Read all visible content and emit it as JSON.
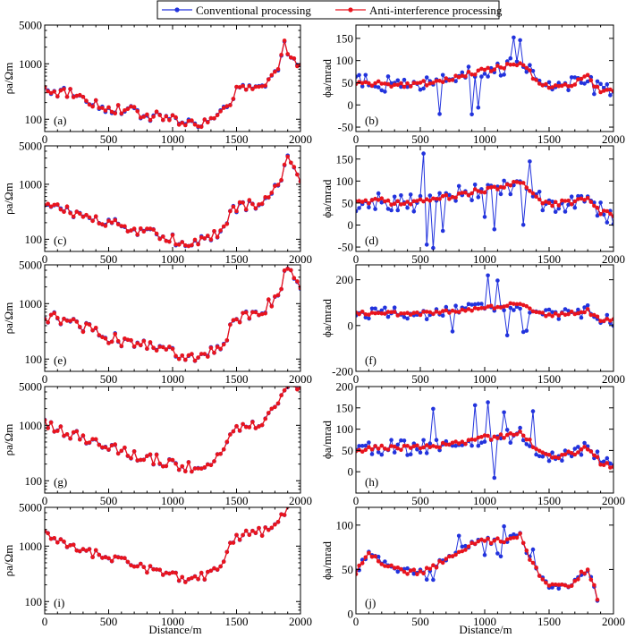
{
  "legend": {
    "conventional_label": "Conventional processing",
    "anti_label": "Anti-interference processing",
    "conventional_color": "#2233dd",
    "anti_color": "#e8141e"
  },
  "axis_labels": {
    "rho_y": "ρa/Ωm",
    "phi_y": "ϕa/mrad",
    "x": "Distance/m"
  },
  "chart_data": {
    "type": "line",
    "xlim": [
      0,
      2000
    ],
    "xticks": [
      0,
      500,
      1000,
      1500,
      2000
    ],
    "xlabel": "Distance/m",
    "series_names": [
      "Conventional processing",
      "Anti-interference processing"
    ],
    "panels": [
      {
        "label": "(a)",
        "kind": "rho",
        "scale": "log",
        "ylim": [
          60,
          5000
        ],
        "yticks": [
          100,
          1000,
          5000
        ],
        "ylabel": "ρa/Ωm",
        "profile": [
          [
            0,
            350
          ],
          [
            100,
            310
          ],
          [
            200,
            300
          ],
          [
            300,
            240
          ],
          [
            400,
            190
          ],
          [
            500,
            160
          ],
          [
            600,
            150
          ],
          [
            700,
            135
          ],
          [
            800,
            120
          ],
          [
            900,
            110
          ],
          [
            1000,
            98
          ],
          [
            1100,
            90
          ],
          [
            1200,
            82
          ],
          [
            1300,
            95
          ],
          [
            1400,
            130
          ],
          [
            1450,
            220
          ],
          [
            1500,
            320
          ],
          [
            1600,
            350
          ],
          [
            1700,
            380
          ],
          [
            1800,
            600
          ],
          [
            1850,
            1200
          ],
          [
            1880,
            2600
          ],
          [
            1900,
            1700
          ],
          [
            1950,
            1500
          ],
          [
            1980,
            900
          ],
          [
            2000,
            800
          ]
        ],
        "noise_conv": 0.2,
        "noise_anti": 0.15
      },
      {
        "label": "(b)",
        "kind": "phi",
        "scale": "linear",
        "ylim": [
          -60,
          180
        ],
        "yticks": [
          -50,
          0,
          50,
          100,
          150
        ],
        "ylabel": "ϕa/mrad",
        "profile": [
          [
            0,
            52
          ],
          [
            200,
            47
          ],
          [
            400,
            44
          ],
          [
            600,
            52
          ],
          [
            800,
            65
          ],
          [
            1000,
            78
          ],
          [
            1150,
            85
          ],
          [
            1250,
            92
          ],
          [
            1300,
            90
          ],
          [
            1400,
            55
          ],
          [
            1500,
            40
          ],
          [
            1600,
            44
          ],
          [
            1700,
            50
          ],
          [
            1800,
            65
          ],
          [
            1850,
            42
          ],
          [
            1900,
            32
          ],
          [
            2000,
            30
          ]
        ],
        "noise_conv": 30,
        "noise_anti": 6
      },
      {
        "label": "(c)",
        "kind": "rho",
        "scale": "log",
        "ylim": [
          60,
          5000
        ],
        "yticks": [
          100,
          1000,
          5000
        ],
        "ylabel": "ρa/Ωm",
        "profile": [
          [
            0,
            420
          ],
          [
            100,
            370
          ],
          [
            200,
            330
          ],
          [
            300,
            270
          ],
          [
            400,
            220
          ],
          [
            500,
            190
          ],
          [
            600,
            170
          ],
          [
            700,
            150
          ],
          [
            800,
            130
          ],
          [
            900,
            115
          ],
          [
            1000,
            100
          ],
          [
            1100,
            92
          ],
          [
            1200,
            88
          ],
          [
            1300,
            110
          ],
          [
            1400,
            160
          ],
          [
            1450,
            260
          ],
          [
            1500,
            380
          ],
          [
            1600,
            420
          ],
          [
            1700,
            450
          ],
          [
            1800,
            800
          ],
          [
            1850,
            1400
          ],
          [
            1900,
            3500
          ],
          [
            1950,
            2000
          ],
          [
            2000,
            1300
          ]
        ],
        "noise_conv": 0.2,
        "noise_anti": 0.16
      },
      {
        "label": "(d)",
        "kind": "phi",
        "scale": "linear",
        "ylim": [
          -60,
          180
        ],
        "yticks": [
          -50,
          0,
          50,
          100,
          150
        ],
        "ylabel": "ϕa/mrad",
        "profile": [
          [
            0,
            50
          ],
          [
            200,
            55
          ],
          [
            400,
            48
          ],
          [
            600,
            58
          ],
          [
            800,
            68
          ],
          [
            1000,
            80
          ],
          [
            1150,
            85
          ],
          [
            1250,
            95
          ],
          [
            1300,
            90
          ],
          [
            1400,
            60
          ],
          [
            1500,
            48
          ],
          [
            1600,
            50
          ],
          [
            1700,
            52
          ],
          [
            1800,
            62
          ],
          [
            1850,
            40
          ],
          [
            1900,
            30
          ],
          [
            2000,
            22
          ]
        ],
        "noise_conv": 35,
        "noise_anti": 6
      },
      {
        "label": "(e)",
        "kind": "rho",
        "scale": "log",
        "ylim": [
          60,
          5000
        ],
        "yticks": [
          100,
          1000,
          5000
        ],
        "ylabel": "ρa/Ωm",
        "profile": [
          [
            0,
            600
          ],
          [
            100,
            520
          ],
          [
            200,
            450
          ],
          [
            300,
            370
          ],
          [
            400,
            300
          ],
          [
            500,
            240
          ],
          [
            600,
            215
          ],
          [
            700,
            195
          ],
          [
            800,
            170
          ],
          [
            900,
            150
          ],
          [
            1000,
            128
          ],
          [
            1100,
            118
          ],
          [
            1200,
            115
          ],
          [
            1300,
            140
          ],
          [
            1400,
            200
          ],
          [
            1450,
            330
          ],
          [
            1500,
            560
          ],
          [
            1600,
            640
          ],
          [
            1700,
            700
          ],
          [
            1800,
            1200
          ],
          [
            1850,
            2000
          ],
          [
            1900,
            4500
          ],
          [
            1950,
            3500
          ],
          [
            2000,
            2000
          ]
        ],
        "noise_conv": 0.2,
        "noise_anti": 0.17
      },
      {
        "label": "(f)",
        "kind": "phi",
        "scale": "linear",
        "ylim": [
          -200,
          265
        ],
        "yticks": [
          -200,
          0,
          200
        ],
        "ylabel": "ϕa/mrad",
        "profile": [
          [
            0,
            55
          ],
          [
            200,
            55
          ],
          [
            400,
            48
          ],
          [
            600,
            55
          ],
          [
            800,
            62
          ],
          [
            1000,
            78
          ],
          [
            1150,
            85
          ],
          [
            1250,
            95
          ],
          [
            1300,
            90
          ],
          [
            1400,
            60
          ],
          [
            1500,
            45
          ],
          [
            1600,
            50
          ],
          [
            1700,
            55
          ],
          [
            1800,
            65
          ],
          [
            1850,
            40
          ],
          [
            1900,
            28
          ],
          [
            2000,
            20
          ]
        ],
        "noise_conv": 45,
        "noise_anti": 8
      },
      {
        "label": "(g)",
        "kind": "rho",
        "scale": "log",
        "ylim": [
          60,
          5000
        ],
        "yticks": [
          100,
          1000,
          5000
        ],
        "ylabel": "ρa/Ωm",
        "profile": [
          [
            0,
            1000
          ],
          [
            100,
            820
          ],
          [
            200,
            700
          ],
          [
            300,
            560
          ],
          [
            400,
            460
          ],
          [
            500,
            400
          ],
          [
            600,
            350
          ],
          [
            700,
            300
          ],
          [
            800,
            260
          ],
          [
            900,
            230
          ],
          [
            1000,
            205
          ],
          [
            1100,
            180
          ],
          [
            1200,
            175
          ],
          [
            1300,
            210
          ],
          [
            1400,
            300
          ],
          [
            1450,
            550
          ],
          [
            1500,
            950
          ],
          [
            1600,
            1000
          ],
          [
            1700,
            1150
          ],
          [
            1800,
            2000
          ],
          [
            1850,
            3500
          ],
          [
            1900,
            5000
          ],
          [
            1950,
            5000
          ],
          [
            2000,
            4500
          ]
        ],
        "noise_conv": 0.18,
        "noise_anti": 0.16
      },
      {
        "label": "(h)",
        "kind": "phi",
        "scale": "linear",
        "ylim": [
          -50,
          200
        ],
        "yticks": [
          0,
          50,
          100,
          150,
          200
        ],
        "ylabel": "ϕa/mrad",
        "profile": [
          [
            0,
            50
          ],
          [
            200,
            58
          ],
          [
            400,
            55
          ],
          [
            600,
            58
          ],
          [
            800,
            68
          ],
          [
            1000,
            80
          ],
          [
            1150,
            82
          ],
          [
            1250,
            88
          ],
          [
            1300,
            90
          ],
          [
            1400,
            52
          ],
          [
            1500,
            35
          ],
          [
            1600,
            38
          ],
          [
            1700,
            45
          ],
          [
            1800,
            58
          ],
          [
            1850,
            40
          ],
          [
            1900,
            20
          ],
          [
            2000,
            12
          ]
        ],
        "noise_conv": 30,
        "noise_anti": 6
      },
      {
        "label": "(i)",
        "kind": "rho",
        "scale": "log",
        "ylim": [
          60,
          5000
        ],
        "yticks": [
          100,
          1000,
          5000
        ],
        "ylabel": "ρa/Ωm",
        "profile": [
          [
            0,
            1700
          ],
          [
            100,
            1300
          ],
          [
            200,
            1050
          ],
          [
            300,
            850
          ],
          [
            400,
            700
          ],
          [
            500,
            600
          ],
          [
            600,
            520
          ],
          [
            700,
            450
          ],
          [
            800,
            400
          ],
          [
            900,
            340
          ],
          [
            1000,
            300
          ],
          [
            1100,
            270
          ],
          [
            1200,
            260
          ],
          [
            1300,
            320
          ],
          [
            1400,
            500
          ],
          [
            1450,
            950
          ],
          [
            1500,
            1450
          ],
          [
            1600,
            1600
          ],
          [
            1700,
            1800
          ],
          [
            1800,
            2400
          ],
          [
            1850,
            3500
          ],
          [
            1900,
            5000
          ]
        ],
        "noise_conv": 0.15,
        "noise_anti": 0.14
      },
      {
        "label": "(j)",
        "kind": "phi",
        "scale": "linear",
        "ylim": [
          0,
          120
        ],
        "yticks": [
          0,
          50,
          100
        ],
        "ylabel": "ϕa/mrad",
        "profile": [
          [
            0,
            47
          ],
          [
            50,
            58
          ],
          [
            100,
            68
          ],
          [
            150,
            66
          ],
          [
            200,
            58
          ],
          [
            300,
            52
          ],
          [
            400,
            48
          ],
          [
            500,
            47
          ],
          [
            600,
            52
          ],
          [
            700,
            62
          ],
          [
            800,
            72
          ],
          [
            900,
            78
          ],
          [
            1000,
            82
          ],
          [
            1100,
            82
          ],
          [
            1200,
            85
          ],
          [
            1280,
            88
          ],
          [
            1320,
            70
          ],
          [
            1400,
            50
          ],
          [
            1500,
            30
          ],
          [
            1600,
            32
          ],
          [
            1700,
            35
          ],
          [
            1750,
            45
          ],
          [
            1800,
            50
          ],
          [
            1850,
            32
          ],
          [
            1880,
            10
          ]
        ],
        "noise_conv": 6,
        "noise_anti": 3
      }
    ]
  }
}
